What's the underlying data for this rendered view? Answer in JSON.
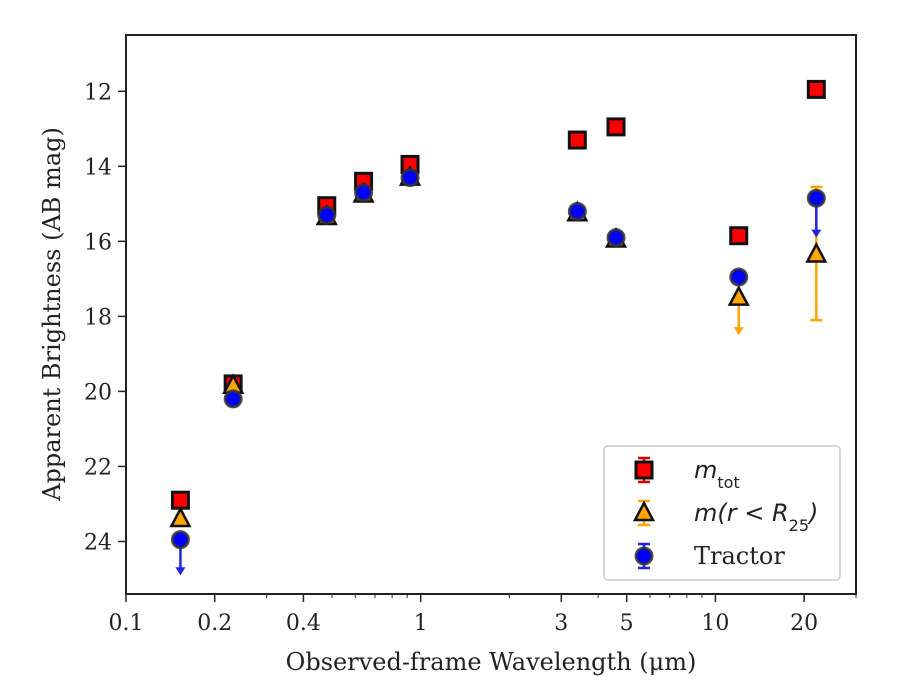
{
  "chart_data": {
    "type": "scatter",
    "xlabel": "Observed-frame Wavelength (μm)",
    "ylabel": "Apparent Brightness (AB mag)",
    "x_scale": "log",
    "y_inverted": true,
    "xlim": [
      0.1,
      30
    ],
    "ylim": [
      25.4,
      10.5
    ],
    "x_ticks": [
      0.1,
      0.2,
      0.4,
      1,
      3,
      5,
      10,
      20
    ],
    "x_tick_labels": [
      "0.1",
      "0.2",
      "0.4",
      "1",
      "3",
      "5",
      "10",
      "20"
    ],
    "y_ticks": [
      12,
      14,
      16,
      18,
      20,
      22,
      24
    ],
    "y_tick_labels": [
      "12",
      "14",
      "16",
      "18",
      "20",
      "22",
      "24"
    ],
    "grid": false,
    "legend_position": "lower-right",
    "legend": [
      {
        "label_main": "m",
        "label_sub": "tot",
        "label_tail": "",
        "marker": "square",
        "color": "#ff0000",
        "errcolor": "#dd0000"
      },
      {
        "label_main": "m(r < R",
        "label_sub": "25",
        "label_tail": ")",
        "marker": "triangle",
        "color": "#ffa500",
        "errcolor": "#ffa500"
      },
      {
        "label_main": "Tractor",
        "label_sub": "",
        "label_tail": "",
        "marker": "circle",
        "color": "#0000ff",
        "errcolor": "#2222ee"
      }
    ],
    "series": [
      {
        "name": "mtot",
        "marker": "square",
        "color": "#ff0000",
        "points": [
          {
            "x": 0.153,
            "y": 22.9
          },
          {
            "x": 0.231,
            "y": 19.8
          },
          {
            "x": 0.48,
            "y": 15.05
          },
          {
            "x": 0.64,
            "y": 14.4
          },
          {
            "x": 0.92,
            "y": 13.95
          },
          {
            "x": 3.4,
            "y": 13.3
          },
          {
            "x": 4.6,
            "y": 12.95
          },
          {
            "x": 12.0,
            "y": 15.85
          },
          {
            "x": 22.0,
            "y": 11.95
          }
        ]
      },
      {
        "name": "m(r<R25)",
        "marker": "triangle",
        "color": "#ffa500",
        "points": [
          {
            "x": 0.153,
            "y": 23.4,
            "upper_limit": false
          },
          {
            "x": 0.231,
            "y": 19.85
          },
          {
            "x": 0.48,
            "y": 15.35
          },
          {
            "x": 0.64,
            "y": 14.75
          },
          {
            "x": 0.92,
            "y": 14.3
          },
          {
            "x": 3.4,
            "y": 15.25
          },
          {
            "x": 4.6,
            "y": 15.95
          },
          {
            "x": 12.0,
            "y": 17.5,
            "arrow_to": 18.5
          },
          {
            "x": 22.0,
            "y": 16.35,
            "err_low": 14.55,
            "err_high": 18.1
          }
        ]
      },
      {
        "name": "Tractor",
        "marker": "circle",
        "color": "#0000ff",
        "points": [
          {
            "x": 0.153,
            "y": 23.95,
            "arrow_to": 24.9
          },
          {
            "x": 0.231,
            "y": 20.2
          },
          {
            "x": 0.48,
            "y": 15.3
          },
          {
            "x": 0.64,
            "y": 14.7
          },
          {
            "x": 0.92,
            "y": 14.3
          },
          {
            "x": 3.4,
            "y": 15.2
          },
          {
            "x": 4.6,
            "y": 15.9
          },
          {
            "x": 12.0,
            "y": 16.95
          },
          {
            "x": 22.0,
            "y": 14.85,
            "arrow_to": 15.9
          }
        ]
      }
    ]
  }
}
